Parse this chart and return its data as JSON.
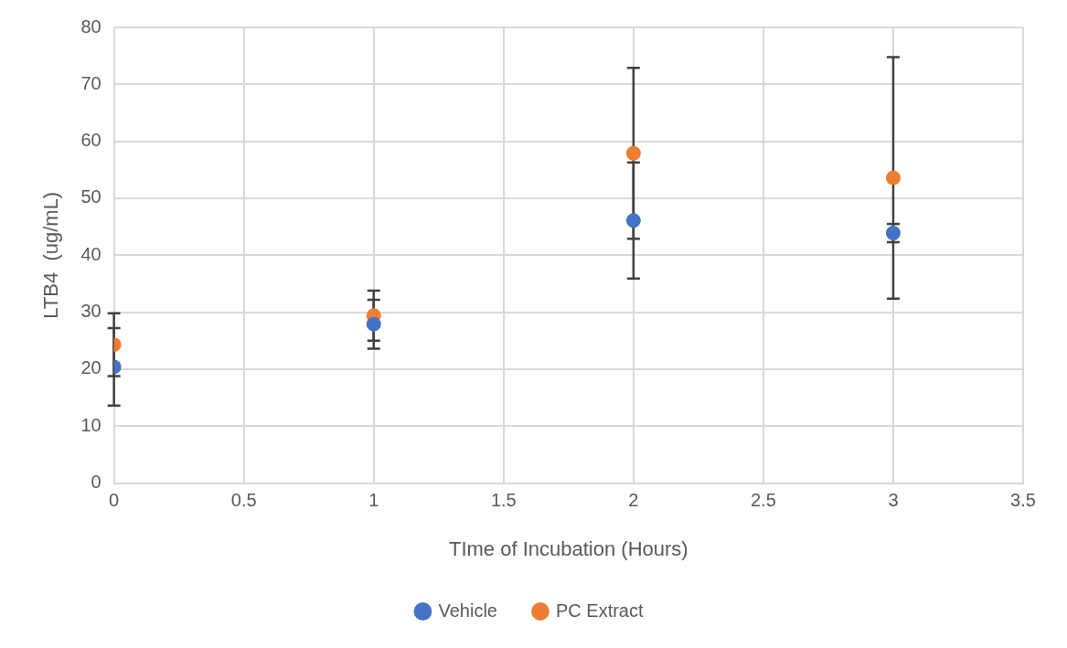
{
  "chart_data": {
    "type": "scatter",
    "xlabel": "TIme of Incubation (Hours)",
    "ylabel": "LTB4  (ug/mL)",
    "x": [
      0,
      1,
      2,
      3
    ],
    "series": [
      {
        "name": "Vehicle",
        "color": "#4472c4",
        "values": [
          20.4,
          27.9,
          46.1,
          43.9
        ],
        "errors": [
          6.8,
          4.3,
          10.2,
          1.6
        ]
      },
      {
        "name": "PC Extract",
        "color": "#ed7d31",
        "values": [
          24.3,
          29.4,
          57.9,
          53.6
        ],
        "errors": [
          5.5,
          4.4,
          15.0,
          21.2
        ]
      }
    ],
    "xlim": [
      0,
      3.5
    ],
    "xticks": [
      0,
      0.5,
      1,
      1.5,
      2,
      2.5,
      3,
      3.5
    ],
    "ylim": [
      0,
      80
    ],
    "yticks": [
      0,
      10,
      20,
      30,
      40,
      50,
      60,
      70,
      80
    ],
    "grid": true,
    "legend": "bottom",
    "marker": "circle"
  }
}
